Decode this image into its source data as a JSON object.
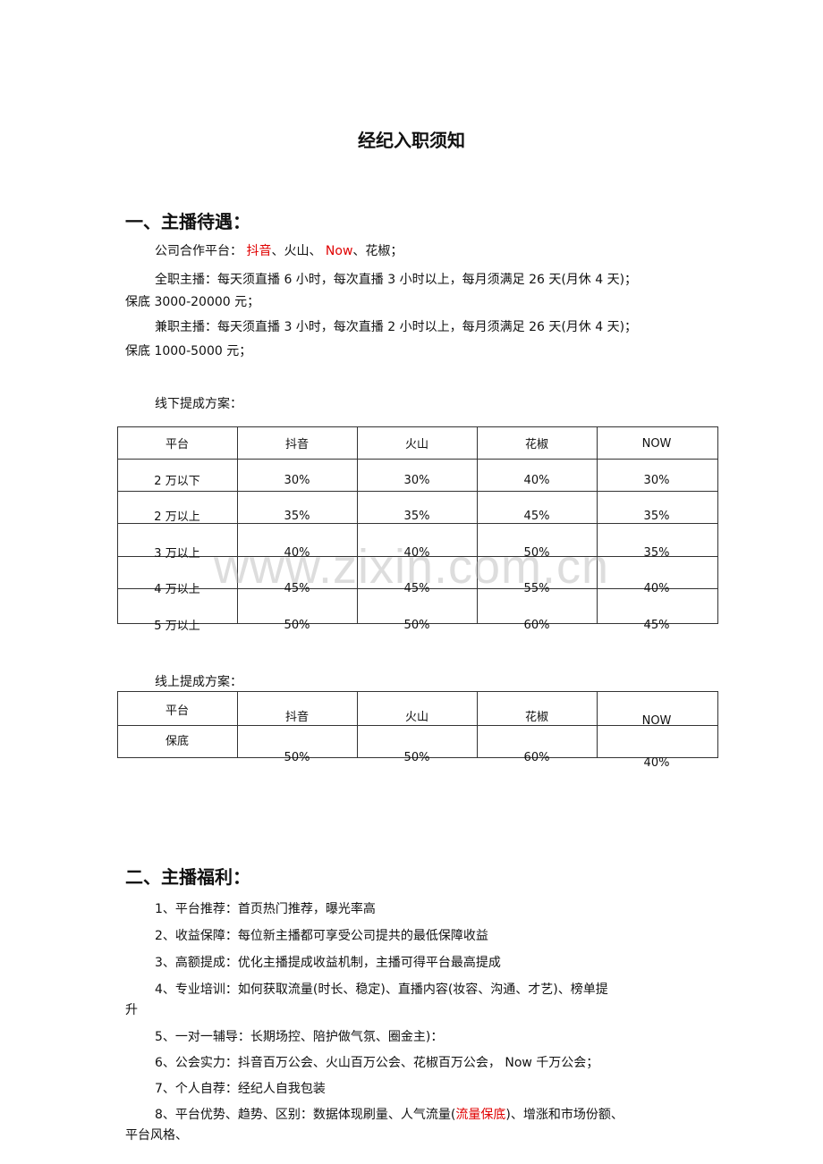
{
  "title": "经纪入职须知",
  "section1": {
    "heading": "一、主播待遇：",
    "platforms_prefix": "公司合作平台：",
    "platform_1": "抖音",
    "sep_1": "、火山、",
    "platform_2": "Now",
    "sep_2": "、花椒；",
    "fulltime_line1": "全职主播：每天须直播 6 小时，每次直播 3 小时以上，每月须满足 26 天(月休 4 天)；",
    "fulltime_line2": "保底 3000-20000 元；",
    "parttime_line1": "兼职主播：每天须直播 3 小时，每次直播 2 小时以上，每月须满足 26 天(月休 4 天)；",
    "parttime_line2": "保底 1000-5000 元；",
    "offline_label": "线下提成方案：",
    "offline_table": {
      "headers": [
        "平台",
        "抖音",
        "火山",
        "花椒",
        "NOW"
      ],
      "rows": [
        [
          "2 万以下",
          "30%",
          "30%",
          "40%",
          "30%"
        ],
        [
          "2 万以上",
          "35%",
          "35%",
          "45%",
          "35%"
        ],
        [
          "3 万以上",
          "40%",
          "40%",
          "50%",
          "35%"
        ],
        [
          "4 万以上",
          "45%",
          "45%",
          "55%",
          "40%"
        ],
        [
          "5 万以上",
          "50%",
          "50%",
          "60%",
          "45%"
        ]
      ]
    },
    "online_label": "线上提成方案：",
    "online_table": {
      "headers": [
        "平台",
        "抖音",
        "火山",
        "花椒",
        "NOW"
      ],
      "rows": [
        [
          "保底",
          "50%",
          "50%",
          "60%",
          "40%"
        ]
      ]
    }
  },
  "watermark": "www.zixin.com.cn",
  "section2": {
    "heading": "二、主播福利：",
    "items": [
      "1、平台推荐：首页热门推荐，曝光率高",
      "2、收益保障：每位新主播都可享受公司提共的最低保障收益",
      "3、高额提成：优化主播提成收益机制，主播可得平台最高提成",
      "4、专业培训：如何获取流量(时长、稳定)、直播内容(妆容、沟通、才艺)、榜单提",
      "升",
      "5、一对一辅导：长期场控、陪护做气氛、圈金主)：",
      "6、公会实力：抖音百万公会、火山百万公会、花椒百万公会，  Now 千万公会；",
      "7、个人自荐：经纪人自我包装"
    ],
    "item8_prefix": "8、平台优势、趋势、区别：数据体现刷量、人气流量(",
    "item8_highlight": "流量保底",
    "item8_suffix": ")、增涨和市场份额、",
    "item8_line2": "平台风格、"
  },
  "colors": {
    "highlight": "#e00000",
    "text": "#111111",
    "border": "#333333"
  }
}
